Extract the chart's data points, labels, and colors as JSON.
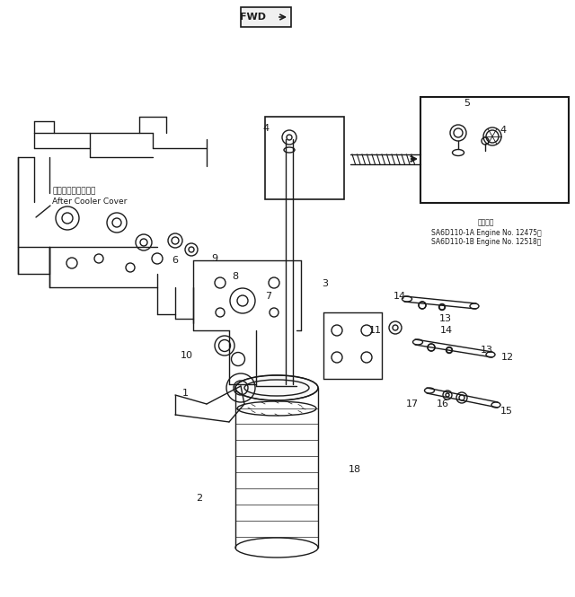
{
  "bg_color": "#ffffff",
  "line_color": "#1a1a1a",
  "line_width": 1.0,
  "label_after_cooler_jp": "アフタクーラカバー",
  "label_after_cooler_en": "After Cooler Cover",
  "engine_text_jp": "適用号機",
  "engine_text_1a": "SA6D110-1A Engine No. 12475～",
  "engine_text_1b": "SA6D110-1B Engine No. 12518～"
}
